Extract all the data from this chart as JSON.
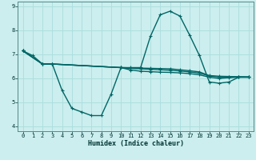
{
  "title": "",
  "xlabel": "Humidex (Indice chaleur)",
  "ylabel": "",
  "bg_color": "#cceeee",
  "line_color": "#006666",
  "grid_color": "#aadddd",
  "lines": [
    {
      "x": [
        0,
        1,
        2,
        3,
        4,
        5,
        6,
        7,
        8,
        9,
        10,
        11,
        12,
        13,
        14,
        15,
        16,
        17,
        18,
        19,
        20,
        21,
        22,
        23
      ],
      "y": [
        7.15,
        6.95,
        6.6,
        6.6,
        5.5,
        4.75,
        4.6,
        4.45,
        4.45,
        5.35,
        6.45,
        6.45,
        6.45,
        7.75,
        8.65,
        8.8,
        8.6,
        7.8,
        6.95,
        5.85,
        5.8,
        5.85,
        6.05,
        6.05
      ]
    },
    {
      "x": [
        0,
        2,
        3,
        10,
        11,
        12,
        13,
        14,
        15,
        16,
        17,
        18,
        19,
        20,
        21,
        22,
        23
      ],
      "y": [
        7.15,
        6.6,
        6.6,
        6.45,
        6.35,
        6.3,
        6.28,
        6.26,
        6.25,
        6.23,
        6.2,
        6.15,
        6.05,
        6.0,
        6.03,
        6.05,
        6.05
      ]
    },
    {
      "x": [
        0,
        2,
        3,
        10,
        11,
        12,
        13,
        14,
        15,
        16,
        17,
        18,
        19,
        20,
        21,
        22,
        23
      ],
      "y": [
        7.15,
        6.6,
        6.6,
        6.45,
        6.42,
        6.4,
        6.38,
        6.36,
        6.34,
        6.31,
        6.27,
        6.22,
        6.1,
        6.06,
        6.06,
        6.06,
        6.06
      ]
    },
    {
      "x": [
        0,
        2,
        3,
        10,
        11,
        12,
        13,
        14,
        15,
        16,
        17,
        18,
        19,
        20,
        21,
        22,
        23
      ],
      "y": [
        7.15,
        6.6,
        6.6,
        6.45,
        6.44,
        6.43,
        6.42,
        6.41,
        6.4,
        6.36,
        6.32,
        6.27,
        6.12,
        6.09,
        6.08,
        6.07,
        6.06
      ]
    }
  ],
  "ylim": [
    3.8,
    9.2
  ],
  "xlim": [
    -0.5,
    23.5
  ],
  "yticks": [
    4,
    5,
    6,
    7,
    8,
    9
  ],
  "xticks": [
    0,
    1,
    2,
    3,
    4,
    5,
    6,
    7,
    8,
    9,
    10,
    11,
    12,
    13,
    14,
    15,
    16,
    17,
    18,
    19,
    20,
    21,
    22,
    23
  ]
}
